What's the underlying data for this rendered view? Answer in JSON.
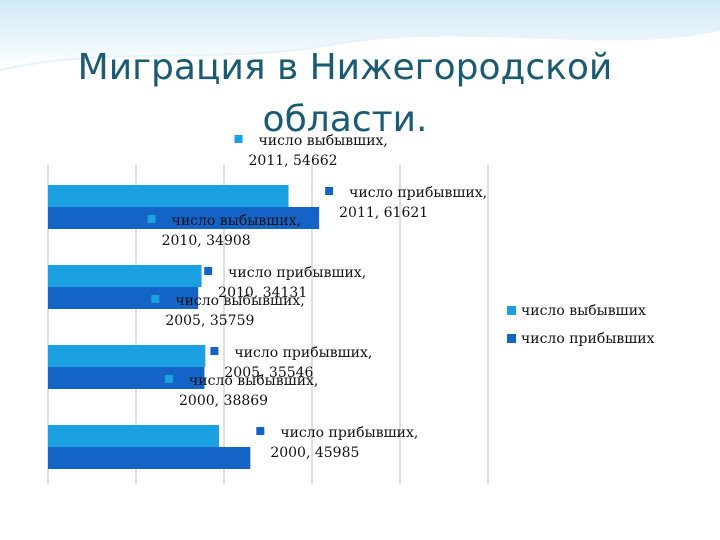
{
  "slide": {
    "title_line1": "Миграция в Нижегородской",
    "title_line2": "области."
  },
  "chart_data": {
    "type": "bar",
    "orientation": "horizontal",
    "categories": [
      "2000",
      "2005",
      "2010",
      "2011"
    ],
    "series": [
      {
        "name": "число выбывших",
        "color": "#1ba1e2",
        "values": [
          38869,
          35759,
          34908,
          54662
        ],
        "labels": [
          "число выбывших, 2000, 38869",
          "число выбывших, 2005, 35759",
          "число выбывших, 2010, 34908",
          "число выбывших, 2011, 54662"
        ]
      },
      {
        "name": "число прибывших",
        "color": "#1464c8",
        "values": [
          45985,
          35546,
          34131,
          61621
        ],
        "labels": [
          "число прибывших, 2000, 45985",
          "число прибывших, 2005, 35546",
          "число прибывших, 2010, 34131",
          "число прибывших, 2011, 61621"
        ]
      }
    ],
    "xlim": [
      0,
      100000
    ],
    "grid": true,
    "legend_position": "right"
  }
}
